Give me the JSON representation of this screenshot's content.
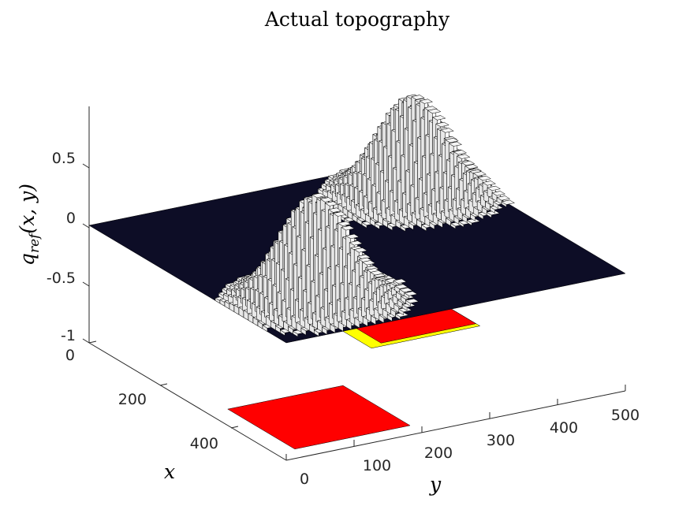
{
  "chart_data": {
    "type": "surface3d",
    "title": "Actual topography",
    "xlabel": "x",
    "ylabel": "y",
    "zlabel_main": "q",
    "zlabel_sub": "ref",
    "zlabel_args": "(x, y)",
    "x_ticks": [
      "0",
      "200",
      "400"
    ],
    "y_ticks": [
      "0",
      "100",
      "200",
      "300",
      "400",
      "500"
    ],
    "z_ticks": [
      "0.5",
      "0",
      "-0.5",
      "-1"
    ],
    "xlim": [
      0,
      500
    ],
    "ylim": [
      0,
      500
    ],
    "zlim": [
      -1,
      0.9
    ],
    "surface": {
      "base_level": 0,
      "color": "#0d0d26",
      "peaks": [
        {
          "x": 110,
          "y": 110,
          "height": 0.9
        },
        {
          "x": 380,
          "y": 410,
          "height": 0.85
        }
      ]
    },
    "floor_patches": [
      {
        "x_range": [
          30,
          200
        ],
        "y_range": [
          30,
          200
        ],
        "color": "#ff0000"
      },
      {
        "x_range": [
          300,
          460
        ],
        "y_range": [
          300,
          460
        ],
        "color": "#ffff00"
      },
      {
        "x_range": [
          310,
          440
        ],
        "y_range": [
          320,
          460
        ],
        "color": "#ff0000"
      }
    ]
  }
}
